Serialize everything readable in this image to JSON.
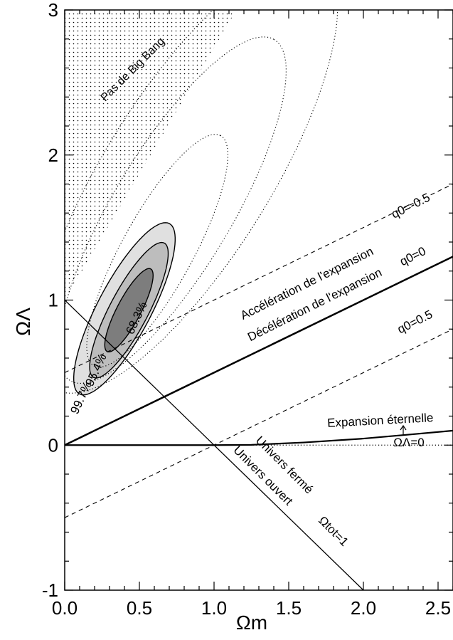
{
  "chart_data": {
    "type": "contour",
    "xlabel": "Ωm",
    "ylabel": "ΩΛ",
    "xlim": [
      0,
      2.6
    ],
    "ylim": [
      -1,
      3
    ],
    "x_ticks": [
      "0.0",
      "0.5",
      "1.0",
      "1.5",
      "2.0",
      "2.5"
    ],
    "y_ticks": [
      "-1",
      "0",
      "1",
      "2",
      "3"
    ],
    "confidence_contours": [
      {
        "level": "68.3%",
        "center": [
          0.43,
          0.93
        ],
        "semi_major": 0.32,
        "semi_minor": 0.08,
        "angle_deg": 63,
        "fill": "#7d7d7d"
      },
      {
        "level": "95.4%",
        "center": [
          0.43,
          0.93
        ],
        "semi_major": 0.52,
        "semi_minor": 0.13,
        "angle_deg": 63,
        "fill": "#bdbdbd"
      },
      {
        "level": "99.7%",
        "center": [
          0.4,
          0.94
        ],
        "semi_major": 0.66,
        "semi_minor": 0.18,
        "angle_deg": 63,
        "fill": "#e0e0e0"
      }
    ],
    "dotted_contours": [
      {
        "center": [
          0.62,
          1.34
        ],
        "semi_major": 0.9,
        "semi_minor": 0.24,
        "angle_deg": 62
      },
      {
        "center": [
          0.72,
          1.62
        ],
        "semi_major": 1.36,
        "semi_minor": 0.4,
        "angle_deg": 60
      },
      {
        "center": [
          0.82,
          1.86
        ],
        "semi_major": 1.72,
        "semi_minor": 0.56,
        "angle_deg": 59
      }
    ],
    "lines": [
      {
        "name": "q0=-0.5",
        "style": "dashed",
        "x": [
          0,
          2.6
        ],
        "y": [
          0.5,
          1.8
        ]
      },
      {
        "name": "q0=0",
        "style": "thick",
        "x": [
          0,
          2.6
        ],
        "y": [
          0,
          1.3
        ]
      },
      {
        "name": "q0=0.5",
        "style": "dashed",
        "x": [
          0,
          2.6
        ],
        "y": [
          -0.5,
          0.8
        ]
      },
      {
        "name": "Ω0=1",
        "style": "thin",
        "x": [
          0,
          2.0
        ],
        "y": [
          1.0,
          -1.0
        ]
      }
    ],
    "expansion_boundary": {
      "x": [
        0,
        1.0,
        1.25,
        1.6,
        2.0,
        2.3,
        2.6
      ],
      "y": [
        0,
        0,
        0.002,
        0.018,
        0.045,
        0.072,
        0.1
      ]
    },
    "omega_lambda_zero": {
      "x": [
        0,
        2.6
      ],
      "y": [
        0,
        0
      ]
    },
    "no_big_bang_region": {
      "x": [
        0.0,
        0.0,
        1.15
      ],
      "y": [
        1.0,
        3.0,
        3.0
      ]
    },
    "annotations": {
      "no_big_bang": "Pas de Big Bang",
      "acceleration": "Accélération de l'expansion",
      "deceleration": "Décélération de l'expansion",
      "eternal": "Expansion éternelle",
      "closed": "Univers fermé",
      "open": "Univers ouvert",
      "q0_m05": "q0=-0.5",
      "q0_0": "q0=0",
      "q0_05": "q0=0.5",
      "omega_tot": "Ωtot=1",
      "omega_l0": "ΩΛ=0",
      "c68": "68.3%",
      "c95": "95.4%",
      "c99": "99.7%"
    }
  }
}
